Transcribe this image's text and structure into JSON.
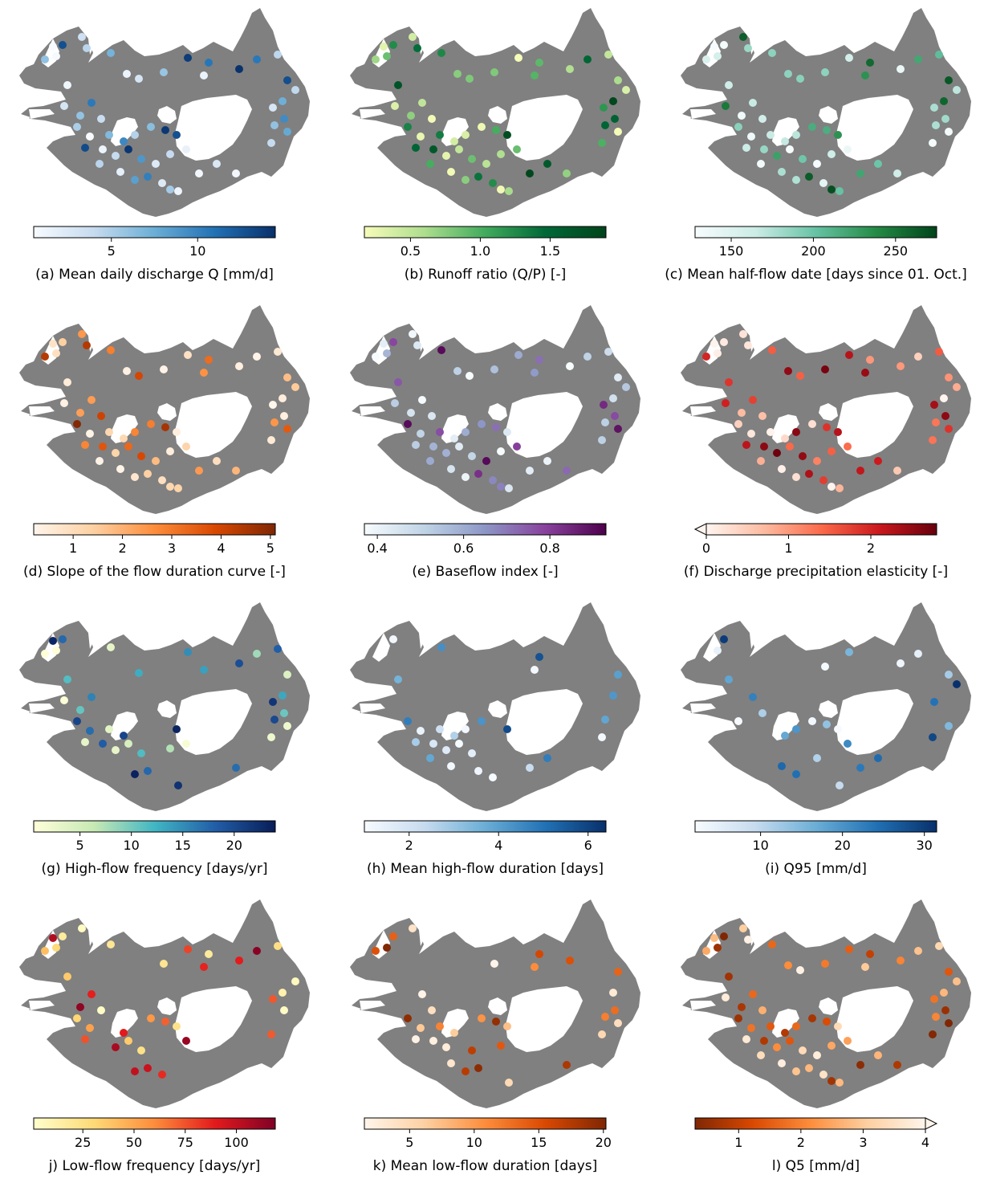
{
  "colormaps": {
    "Blues": [
      "#f7fbff",
      "#c6dbef",
      "#6baed6",
      "#2171b5",
      "#08306b"
    ],
    "Greens": [
      "#f7fcb9",
      "#addd8e",
      "#41ab5d",
      "#006837",
      "#00441b"
    ],
    "BuGn": [
      "#f7fcfd",
      "#ccece6",
      "#66c2a4",
      "#238b45",
      "#00441b"
    ],
    "Oranges": [
      "#fff5eb",
      "#fdd0a2",
      "#fd8d3c",
      "#d94801",
      "#7f2704"
    ],
    "BuPu": [
      "#f7fcfd",
      "#bfd3e6",
      "#8c96c6",
      "#88419d",
      "#4d004b"
    ],
    "Reds": [
      "#fff5f0",
      "#fcbba1",
      "#fb6a4a",
      "#cb181d",
      "#67000d"
    ],
    "YlGnBu": [
      "#ffffd9",
      "#c7e9b4",
      "#41b6c4",
      "#225ea8",
      "#081d58"
    ],
    "YlOrRd": [
      "#ffffcc",
      "#fed976",
      "#fd8d3c",
      "#e31a1c",
      "#800026"
    ],
    "OrangesR": [
      "#7f2704",
      "#d94801",
      "#fd8d3c",
      "#fdd0a2",
      "#fff5eb"
    ]
  },
  "map_style": {
    "land_color": "#808080",
    "glacier_color": "#ffffff"
  },
  "panels": [
    {
      "caption": "(a) Mean daily discharge Q [mm/d]",
      "cmap": "Blues",
      "vmin": 0.5,
      "vmax": 14.5,
      "ticks": [
        5,
        10
      ],
      "tick_labels": [
        "5",
        "10"
      ],
      "extend": "none"
    },
    {
      "caption": "(b) Runoff ratio (Q/P) [-]",
      "cmap": "Greens",
      "vmin": 0.17,
      "vmax": 1.9,
      "ticks": [
        0.5,
        1.0,
        1.5
      ],
      "tick_labels": [
        "0.5",
        "1.0",
        "1.5"
      ],
      "extend": "none"
    },
    {
      "caption": "(c) Mean half-flow date [days since 01. Oct.]",
      "cmap": "BuGn",
      "vmin": 128,
      "vmax": 275,
      "ticks": [
        150,
        200,
        250
      ],
      "tick_labels": [
        "150",
        "200",
        "250"
      ],
      "extend": "none"
    },
    {
      "caption": "(d) Slope of the flow duration curve [-]",
      "cmap": "Oranges",
      "vmin": 0.2,
      "vmax": 5.1,
      "ticks": [
        1,
        2,
        3,
        4,
        5
      ],
      "tick_labels": [
        "1",
        "2",
        "3",
        "4",
        "5"
      ],
      "extend": "none"
    },
    {
      "caption": "(e) Baseflow index [-]",
      "cmap": "BuPu",
      "vmin": 0.37,
      "vmax": 0.93,
      "ticks": [
        0.4,
        0.6,
        0.8
      ],
      "tick_labels": [
        "0.4",
        "0.6",
        "0.8"
      ],
      "extend": "none"
    },
    {
      "caption": "(f) Discharge precipitation elasticity [-]",
      "cmap": "Reds",
      "vmin": 0.0,
      "vmax": 2.8,
      "ticks": [
        0,
        1,
        2
      ],
      "tick_labels": [
        "0",
        "1",
        "2"
      ],
      "extend": "min"
    },
    {
      "caption": "(g) High-flow frequency [days/yr]",
      "cmap": "YlGnBu",
      "vmin": 0.5,
      "vmax": 24,
      "ticks": [
        5,
        10,
        15,
        20
      ],
      "tick_labels": [
        "5",
        "10",
        "15",
        "20"
      ],
      "extend": "none"
    },
    {
      "caption": "(h) Mean high-flow duration [days]",
      "cmap": "Blues",
      "vmin": 1.0,
      "vmax": 6.4,
      "ticks": [
        2,
        4,
        6
      ],
      "tick_labels": [
        "2",
        "4",
        "6"
      ],
      "extend": "none"
    },
    {
      "caption": "(i) Q95 [mm/d]",
      "cmap": "Blues",
      "vmin": 2,
      "vmax": 31.5,
      "ticks": [
        10,
        20,
        30
      ],
      "tick_labels": [
        "10",
        "20",
        "30"
      ],
      "extend": "none"
    },
    {
      "caption": "j) Low-flow frequency [days/yr]",
      "cmap": "YlOrRd",
      "vmin": 1,
      "vmax": 119,
      "ticks": [
        25,
        50,
        75,
        100
      ],
      "tick_labels": [
        "25",
        "50",
        "75",
        "100"
      ],
      "extend": "none"
    },
    {
      "caption": "k) Mean low-flow duration [days]",
      "cmap": "Oranges",
      "vmin": 1.5,
      "vmax": 20.2,
      "ticks": [
        5,
        10,
        15,
        20
      ],
      "tick_labels": [
        "5",
        "10",
        "15",
        "20"
      ],
      "extend": "none"
    },
    {
      "caption": "l) Q5 [mm/d]",
      "cmap": "OrangesR",
      "vmin": 0.3,
      "vmax": 4.0,
      "ticks": [
        1,
        2,
        3,
        4
      ],
      "tick_labels": [
        "1",
        "2",
        "3",
        "4"
      ],
      "extend": "max"
    }
  ]
}
